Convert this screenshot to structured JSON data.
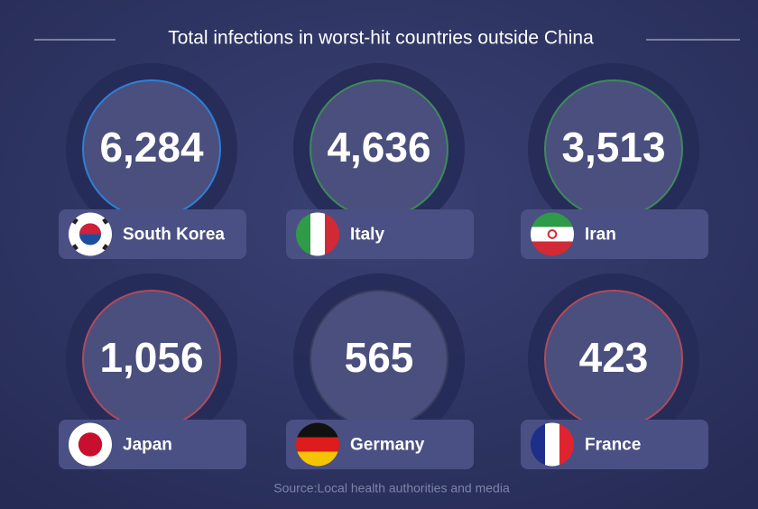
{
  "chart_data": {
    "type": "tiles",
    "title": "Total infections in worst-hit countries outside China",
    "categories": [
      "South Korea",
      "Italy",
      "Iran",
      "Japan",
      "Germany",
      "France"
    ],
    "values": [
      6284,
      4636,
      3513,
      1056,
      565,
      423
    ],
    "value_labels": [
      "6,284",
      "4,636",
      "3,513",
      "1,056",
      "565",
      "423"
    ],
    "colors": [
      "#2f7fd6",
      "#3d8a5a",
      "#3d8a5a",
      "#b04a5a",
      "#3a3f5e",
      "#b04a5a"
    ],
    "source": "Source:Local health authorities and media"
  }
}
